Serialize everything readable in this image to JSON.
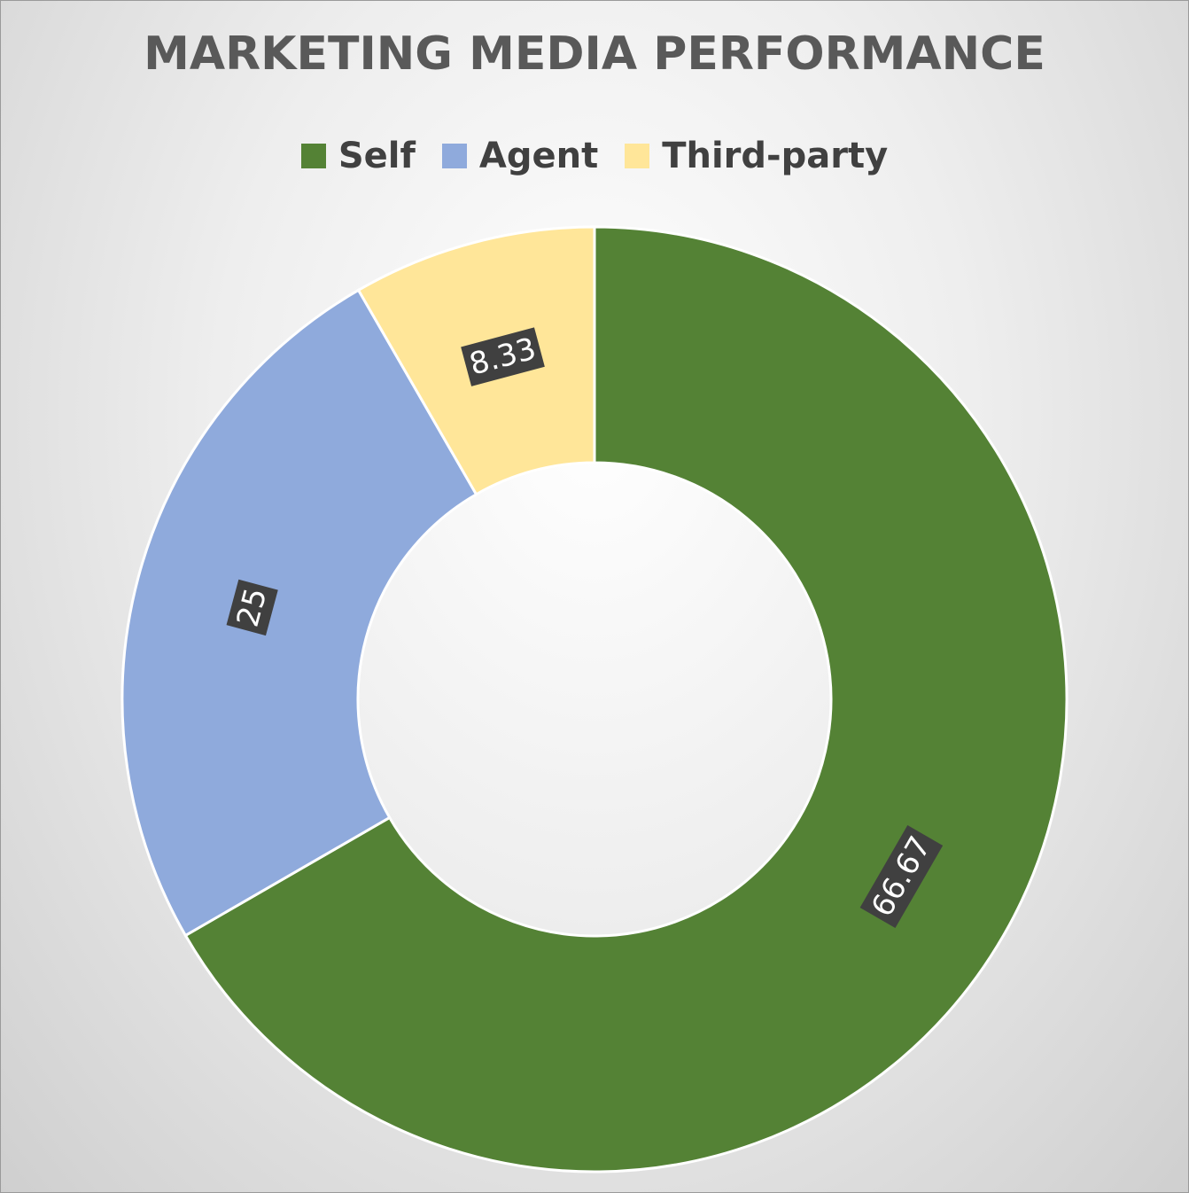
{
  "chart_data": {
    "type": "pie",
    "variant": "donut",
    "title": "MARKETING MEDIA PERFORMANCE",
    "legend_position": "top",
    "categories": [
      "Self",
      "Agent",
      "Third-party"
    ],
    "values": [
      66.67,
      25,
      8.33
    ],
    "data_labels": [
      "66.67",
      "25",
      "8.33"
    ],
    "colors": [
      "#548235",
      "#8faadc",
      "#ffe699"
    ],
    "data_label_background": "#404040",
    "slice_border_color": "#ffffff"
  }
}
